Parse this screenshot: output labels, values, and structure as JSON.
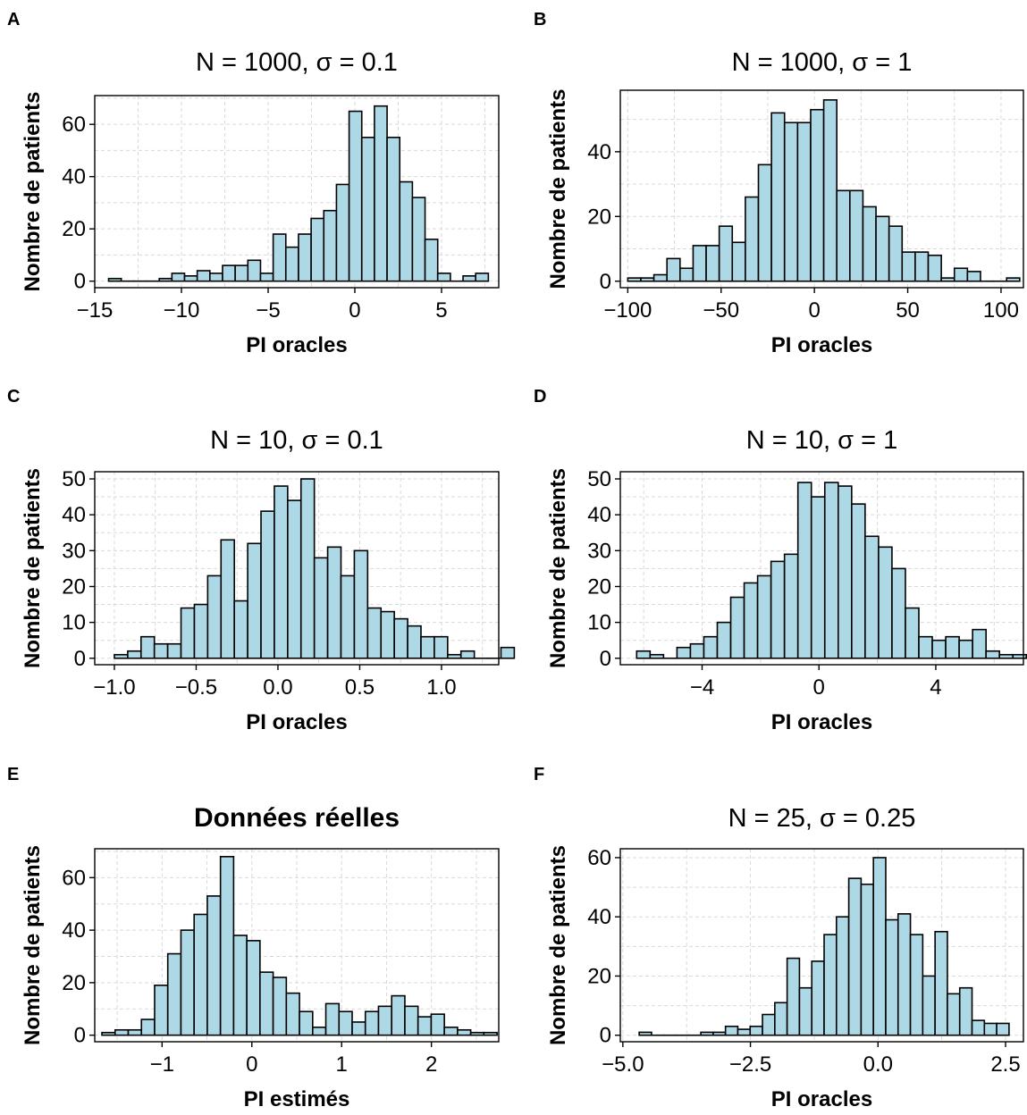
{
  "figure": {
    "bar_fill": "#add8e6",
    "bar_stroke": "#000000",
    "grid_color": "#d9d9d9"
  },
  "chart_data": [
    {
      "type": "bar",
      "panel_letter": "A",
      "title": "N = 1000, σ = 0.1",
      "xlabel": "PI oracles",
      "ylabel": "Nombre de patients",
      "xlim": [
        -15,
        8.3
      ],
      "ylim": [
        -2.5,
        71
      ],
      "xticks": [
        -15,
        -10,
        -5,
        0,
        5
      ],
      "xtick_labels": [
        "−15",
        "−10",
        "−5",
        "0",
        "5"
      ],
      "yticks": [
        0,
        20,
        40,
        60
      ],
      "ytick_labels": [
        "0",
        "20",
        "40",
        "60"
      ],
      "bin_start": -14.2,
      "bin_width": 0.73,
      "values": [
        1,
        0,
        0,
        0,
        1,
        3,
        2,
        4,
        3,
        6,
        6,
        8,
        3,
        18,
        13,
        18,
        24,
        27,
        37,
        65,
        55,
        67,
        55,
        38,
        32,
        16,
        3,
        0,
        2,
        3
      ]
    },
    {
      "type": "bar",
      "panel_letter": "B",
      "title": "N = 1000, σ = 1",
      "xlabel": "PI oracles",
      "ylabel": "Nombre de patients",
      "xlim": [
        -104,
        112
      ],
      "ylim": [
        -2,
        59
      ],
      "xticks": [
        -100,
        -50,
        0,
        50,
        100
      ],
      "xtick_labels": [
        "−100",
        "−50",
        "0",
        "50",
        "100"
      ],
      "yticks": [
        0,
        20,
        40
      ],
      "ytick_labels": [
        "0",
        "20",
        "40"
      ],
      "bin_start": -100,
      "bin_width": 7,
      "values": [
        1,
        1,
        2,
        7,
        4,
        11,
        11,
        17,
        12,
        26,
        36,
        52,
        49,
        49,
        53,
        56,
        28,
        28,
        23,
        20,
        17,
        9,
        9,
        8,
        1,
        4,
        3,
        0,
        0,
        1
      ]
    },
    {
      "type": "bar",
      "panel_letter": "C",
      "title": "N = 10, σ = 0.1",
      "xlabel": "PI oracles",
      "ylabel": "Nombre de patients",
      "xlim": [
        -1.12,
        1.35
      ],
      "ylim": [
        -1.8,
        52
      ],
      "xticks": [
        -1.0,
        -0.5,
        0.0,
        0.5,
        1.0
      ],
      "xtick_labels": [
        "−1.0",
        "−0.5",
        "0.0",
        "0.5",
        "1.0"
      ],
      "yticks": [
        0,
        10,
        20,
        30,
        40,
        50
      ],
      "ytick_labels": [
        "0",
        "10",
        "20",
        "30",
        "40",
        "50"
      ],
      "bin_start": -1.0,
      "bin_width": 0.0815,
      "values": [
        1,
        2,
        6,
        4,
        4,
        14,
        15,
        23,
        33,
        16,
        32,
        41,
        48,
        44,
        50,
        28,
        31,
        23,
        30,
        14,
        13,
        11,
        9,
        6,
        6,
        1,
        2,
        0,
        0,
        3
      ]
    },
    {
      "type": "bar",
      "panel_letter": "D",
      "title": "N = 10, σ = 1",
      "xlabel": "PI oracles",
      "ylabel": "Nombre de patients",
      "xlim": [
        -6.8,
        7.0
      ],
      "ylim": [
        -1.8,
        52
      ],
      "xticks": [
        -4,
        0,
        4
      ],
      "xtick_labels": [
        "−4",
        "0",
        "4"
      ],
      "yticks": [
        0,
        10,
        20,
        30,
        40,
        50
      ],
      "ytick_labels": [
        "0",
        "10",
        "20",
        "30",
        "40",
        "50"
      ],
      "bin_start": -6.24,
      "bin_width": 0.46,
      "values": [
        2,
        1,
        0,
        3,
        4,
        6,
        10,
        17,
        21,
        23,
        27,
        29,
        49,
        45,
        49,
        48,
        43,
        34,
        31,
        25,
        14,
        6,
        5,
        6,
        5,
        8,
        2,
        1,
        1,
        1
      ]
    },
    {
      "type": "bar",
      "panel_letter": "E",
      "title": "Données réelles",
      "xlabel": "PI estimés",
      "ylabel": "Nombre de patients",
      "xlim": [
        -1.75,
        2.75
      ],
      "ylim": [
        -2.5,
        71
      ],
      "xticks": [
        -1,
        0,
        1,
        2
      ],
      "xtick_labels": [
        "−1",
        "0",
        "1",
        "2"
      ],
      "yticks": [
        0,
        20,
        40,
        60
      ],
      "ytick_labels": [
        "0",
        "20",
        "40",
        "60"
      ],
      "bin_start": -1.67,
      "bin_width": 0.1467,
      "values": [
        1,
        2,
        2,
        6,
        19,
        31,
        40,
        46,
        53,
        68,
        38,
        36,
        24,
        22,
        16,
        9,
        3,
        12,
        9,
        5,
        9,
        11,
        15,
        11,
        7,
        8,
        3,
        2,
        1,
        1
      ]
    },
    {
      "type": "bar",
      "panel_letter": "F",
      "title": "N = 25, σ = 0.25",
      "xlabel": "PI oracles",
      "ylabel": "Nombre de patients",
      "xlim": [
        -5.05,
        2.85
      ],
      "ylim": [
        -2.2,
        63
      ],
      "xticks": [
        -5.0,
        -2.5,
        0.0,
        2.5
      ],
      "xtick_labels": [
        "−5.0",
        "−2.5",
        "0.0",
        "2.5"
      ],
      "yticks": [
        0,
        20,
        40,
        60
      ],
      "ytick_labels": [
        "0",
        "20",
        "40",
        "60"
      ],
      "bin_start": -4.68,
      "bin_width": 0.2416,
      "values": [
        1,
        0,
        0,
        0,
        0,
        1,
        1,
        3,
        2,
        3,
        7,
        11,
        26,
        16,
        25,
        34,
        40,
        53,
        51,
        60,
        39,
        41,
        34,
        20,
        35,
        14,
        16,
        5,
        4,
        4
      ]
    }
  ]
}
